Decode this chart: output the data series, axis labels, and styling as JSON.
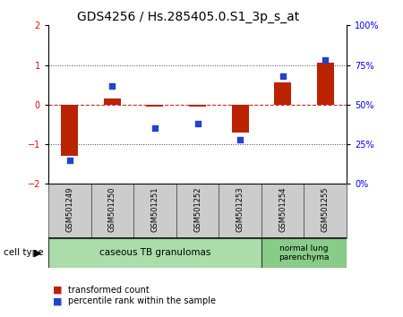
{
  "title": "GDS4256 / Hs.285405.0.S1_3p_s_at",
  "samples": [
    "GSM501249",
    "GSM501250",
    "GSM501251",
    "GSM501252",
    "GSM501253",
    "GSM501254",
    "GSM501255"
  ],
  "transformed_counts": [
    -1.3,
    0.15,
    -0.05,
    -0.05,
    -0.7,
    0.55,
    1.05
  ],
  "percentile_ranks": [
    15,
    62,
    35,
    38,
    28,
    68,
    78
  ],
  "ylim_left": [
    -2,
    2
  ],
  "ylim_right": [
    0,
    100
  ],
  "yticks_left": [
    -2,
    -1,
    0,
    1,
    2
  ],
  "yticks_right": [
    0,
    25,
    50,
    75,
    100
  ],
  "ytick_labels_right": [
    "0%",
    "25%",
    "50%",
    "75%",
    "100%"
  ],
  "bar_color": "#bb2200",
  "dot_color": "#2244cc",
  "zero_line_color": "#dd2222",
  "dotted_line_color": "#444444",
  "cell_type_0_label": "caseous TB granulomas",
  "cell_type_0_color": "#aaddaa",
  "cell_type_0_count": 5,
  "cell_type_1_label": "normal lung\nparenchyma",
  "cell_type_1_color": "#88cc88",
  "cell_type_1_count": 2,
  "legend_bar_label": "transformed count",
  "legend_dot_label": "percentile rank within the sample",
  "tick_label_fontsize": 7,
  "title_fontsize": 10,
  "sample_box_color": "#cccccc",
  "sample_box_edge": "#555555"
}
